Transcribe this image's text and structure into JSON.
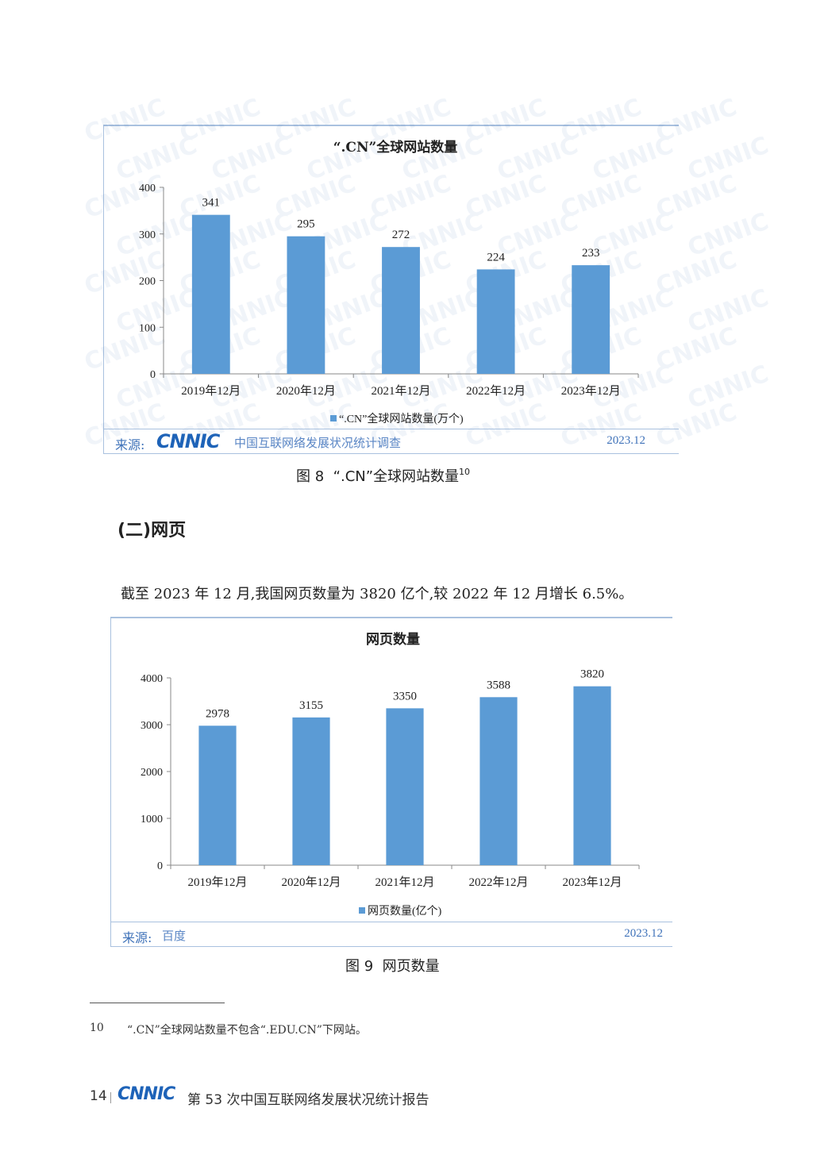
{
  "figure8": {
    "watermark_text": "CNNIC",
    "source_label": "来源:",
    "source_logo": "CNNIC",
    "source_text": "中国互联网络发展状况统计调查",
    "source_date": "2023.12",
    "caption_prefix": "图 8",
    "caption_text": "“.CN”全球网站数量",
    "caption_note": "10"
  },
  "section": {
    "title": "(二)网页"
  },
  "paragraph": {
    "text": "截至 2023 年 12 月,我国网页数量为 3820 亿个,较 2022 年 12 月增长 6.5%。"
  },
  "figure9": {
    "source_label": "来源:",
    "source_text": "百度",
    "source_date": "2023.12",
    "caption_prefix": "图 9",
    "caption_text": "网页数量"
  },
  "footnote": {
    "number": "10",
    "text": "“.CN”全球网站数量不包含“.EDU.CN”下网站。"
  },
  "footer": {
    "page_number": "14",
    "logo": "CNNIC",
    "report_title": "第 53 次中国互联网络发展状况统计报告"
  },
  "colors": {
    "bar": "#5b9bd5",
    "frame": "#a9c1df",
    "source_blue": "#3f72b9"
  },
  "chart_data": [
    {
      "type": "bar",
      "title": "“.CN”全球网站数量",
      "categories": [
        "2019年12月",
        "2020年12月",
        "2021年12月",
        "2022年12月",
        "2023年12月"
      ],
      "values": [
        341,
        295,
        272,
        224,
        233
      ],
      "ylim": [
        0,
        400
      ],
      "yticks": [
        0,
        100,
        200,
        300,
        400
      ],
      "legend": "“.CN”全球网站数量(万个)",
      "legend_position": "bottom",
      "grid": false
    },
    {
      "type": "bar",
      "title": "网页数量",
      "categories": [
        "2019年12月",
        "2020年12月",
        "2021年12月",
        "2022年12月",
        "2023年12月"
      ],
      "values": [
        2978,
        3155,
        3350,
        3588,
        3820
      ],
      "ylim": [
        0,
        4000
      ],
      "yticks": [
        0,
        1000,
        2000,
        3000,
        4000
      ],
      "legend": "网页数量(亿个)",
      "legend_position": "bottom",
      "grid": false
    }
  ]
}
